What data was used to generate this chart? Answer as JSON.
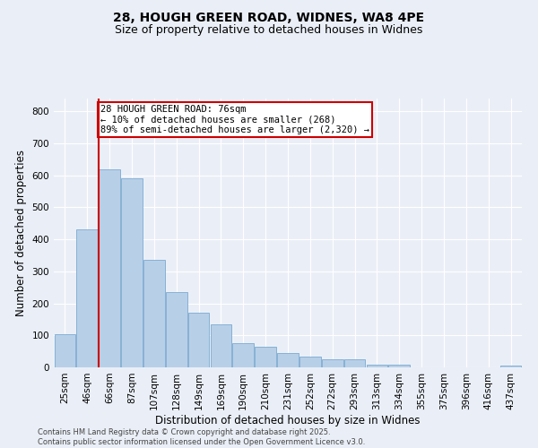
{
  "title_line1": "28, HOUGH GREEN ROAD, WIDNES, WA8 4PE",
  "title_line2": "Size of property relative to detached houses in Widnes",
  "xlabel": "Distribution of detached houses by size in Widnes",
  "ylabel": "Number of detached properties",
  "categories": [
    "25sqm",
    "46sqm",
    "66sqm",
    "87sqm",
    "107sqm",
    "128sqm",
    "149sqm",
    "169sqm",
    "190sqm",
    "210sqm",
    "231sqm",
    "252sqm",
    "272sqm",
    "293sqm",
    "313sqm",
    "334sqm",
    "355sqm",
    "375sqm",
    "396sqm",
    "416sqm",
    "437sqm"
  ],
  "values": [
    105,
    430,
    620,
    590,
    335,
    235,
    170,
    135,
    75,
    65,
    45,
    35,
    25,
    25,
    8,
    8,
    0,
    0,
    0,
    0,
    5
  ],
  "bar_color": "#b8cfe8",
  "bar_edge_color": "#7aaad0",
  "vline_index": 1.5,
  "vline_color": "#cc0000",
  "annotation_text": "28 HOUGH GREEN ROAD: 76sqm\n← 10% of detached houses are smaller (268)\n89% of semi-detached houses are larger (2,320) →",
  "annotation_box_color": "#ffffff",
  "annotation_box_edge": "#cc0000",
  "annotation_fontsize": 7.5,
  "ylim": [
    0,
    840
  ],
  "yticks": [
    0,
    100,
    200,
    300,
    400,
    500,
    600,
    700,
    800
  ],
  "title_fontsize": 10,
  "subtitle_fontsize": 9,
  "xlabel_fontsize": 8.5,
  "ylabel_fontsize": 8.5,
  "tick_fontsize": 7.5,
  "footer_text": "Contains HM Land Registry data © Crown copyright and database right 2025.\nContains public sector information licensed under the Open Government Licence v3.0.",
  "footer_fontsize": 6,
  "background_color": "#eaeff7",
  "plot_bg_color": "#eaeff7",
  "grid_color": "#ffffff"
}
